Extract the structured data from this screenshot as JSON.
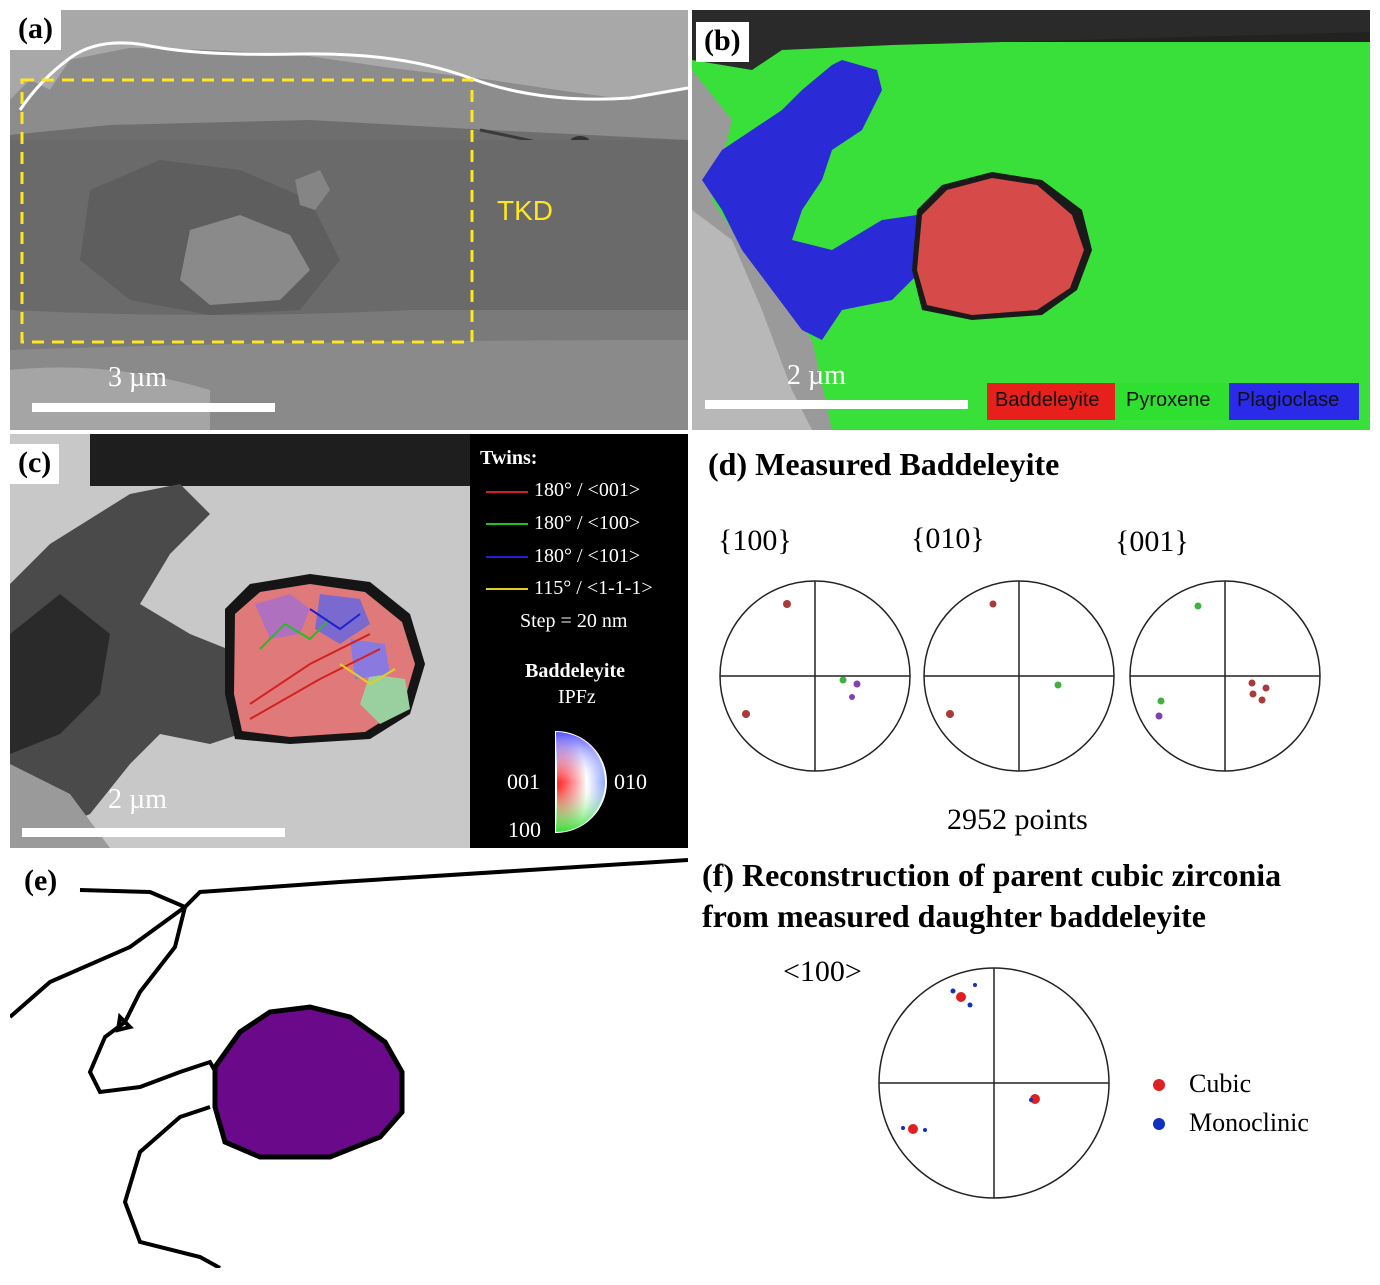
{
  "panel_a": {
    "label": "(a)",
    "roi_text": "TKD",
    "scale_text": "3 µm"
  },
  "panel_b": {
    "label": "(b)",
    "scale_text": "2 µm",
    "legend": [
      {
        "name": "Baddeleyite",
        "color": "#e8201c"
      },
      {
        "name": "Pyroxene",
        "color": "#2fe030"
      },
      {
        "name": "Plagioclase",
        "color": "#2a2ae8"
      }
    ],
    "phase_colors": {
      "baddeleyite": "#d64a4a",
      "pyroxene": "#3ae03a",
      "plagioclase": "#2a2ad6"
    }
  },
  "panel_c": {
    "label": "(c)",
    "scale_text": "2 µm",
    "twins_title": "Twins:",
    "twins": [
      {
        "label": "180° / <001>",
        "color": "#d42020"
      },
      {
        "label": "180° / <100>",
        "color": "#20c020"
      },
      {
        "label": "180° / <101>",
        "color": "#2020d0"
      },
      {
        "label": "115° / <1-1-1>",
        "color": "#e0d020"
      }
    ],
    "step": "Step = 20 nm",
    "ipf_phase": "Baddeleyite",
    "ipf_dir": "IPFz",
    "ipf_labels": {
      "left": "001",
      "right": "010",
      "bottom": "100"
    }
  },
  "panel_d": {
    "label": "(d) Measured Baddeleyite",
    "pole_labels": [
      "{100}",
      "{010}",
      "{001}"
    ],
    "points_text": "2952 points"
  },
  "panel_e": {
    "label": "(e)",
    "grain_color": "#6a0a8a"
  },
  "panel_f": {
    "title_line1": "(f) Reconstruction of parent cubic zirconia",
    "title_line2": "from measured daughter baddeleyite",
    "pole_label": "<100>",
    "legend": [
      {
        "name": "Cubic",
        "color": "#e02020"
      },
      {
        "name": "Monoclinic",
        "color": "#1030c0"
      }
    ]
  }
}
